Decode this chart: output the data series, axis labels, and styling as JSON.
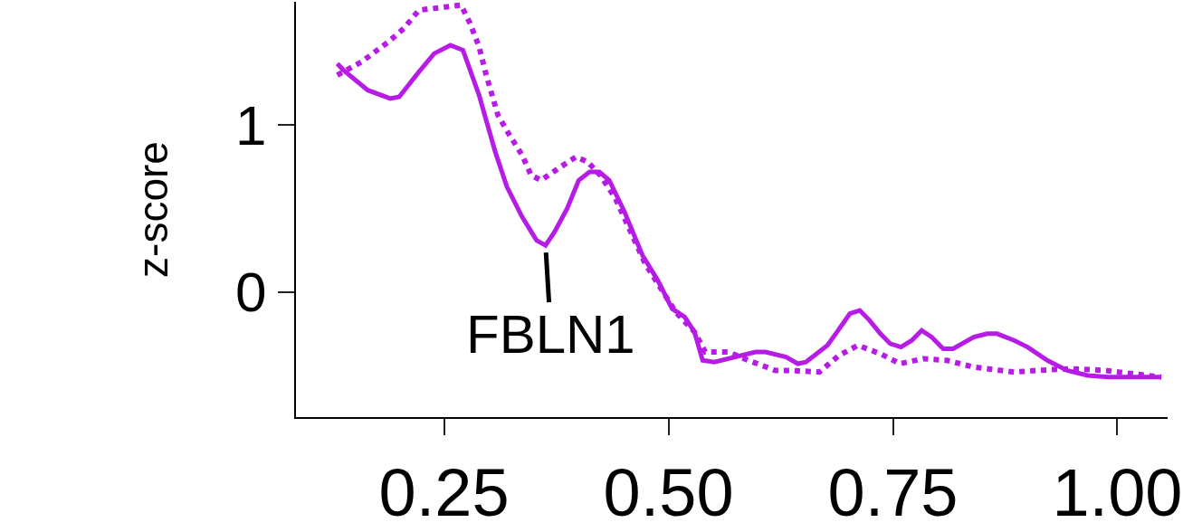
{
  "chart_data": {
    "type": "line",
    "ylabel": "z-score",
    "xlim": [
      0.085,
      1.056
    ],
    "ylim": [
      -0.75,
      1.74
    ],
    "xticks": [
      {
        "value": 0.25,
        "label": "0.25"
      },
      {
        "value": 0.5,
        "label": "0.50"
      },
      {
        "value": 0.75,
        "label": "0.75"
      },
      {
        "value": 1,
        "label": "1.00"
      }
    ],
    "yticks": [
      0,
      1
    ],
    "marker": "none",
    "annotations": [
      {
        "text": "FBLN1",
        "x": 0.363,
        "y": 0.28
      }
    ],
    "series": [
      {
        "color": "#b71be6",
        "line_style": "solid",
        "x": [
          0.131,
          0.138,
          0.165,
          0.19,
          0.2,
          0.222,
          0.239,
          0.257,
          0.271,
          0.289,
          0.307,
          0.32,
          0.337,
          0.353,
          0.363,
          0.373,
          0.387,
          0.4,
          0.412,
          0.423,
          0.434,
          0.451,
          0.471,
          0.488,
          0.504,
          0.518,
          0.529,
          0.538,
          0.551,
          0.597,
          0.608,
          0.631,
          0.644,
          0.653,
          0.677,
          0.689,
          0.702,
          0.713,
          0.724,
          0.736,
          0.747,
          0.759,
          0.771,
          0.782,
          0.793,
          0.806,
          0.817,
          0.84,
          0.855,
          0.866,
          0.885,
          0.9,
          0.922,
          0.944,
          0.967,
          0.99,
          1.049
        ],
        "values": [
          1.37,
          1.33,
          1.21,
          1.16,
          1.17,
          1.32,
          1.43,
          1.48,
          1.45,
          1.18,
          0.84,
          0.63,
          0.45,
          0.31,
          0.28,
          0.36,
          0.5,
          0.67,
          0.72,
          0.72,
          0.67,
          0.48,
          0.22,
          0.07,
          -0.1,
          -0.15,
          -0.24,
          -0.41,
          -0.42,
          -0.36,
          -0.36,
          -0.39,
          -0.43,
          -0.42,
          -0.32,
          -0.23,
          -0.13,
          -0.11,
          -0.17,
          -0.25,
          -0.31,
          -0.33,
          -0.29,
          -0.23,
          -0.27,
          -0.34,
          -0.34,
          -0.27,
          -0.25,
          -0.25,
          -0.29,
          -0.33,
          -0.41,
          -0.47,
          -0.5,
          -0.51,
          -0.51
        ]
      },
      {
        "color": "#b71be6",
        "line_style": "dotted",
        "x": [
          0.131,
          0.158,
          0.188,
          0.205,
          0.222,
          0.269,
          0.279,
          0.289,
          0.297,
          0.31,
          0.323,
          0.337,
          0.347,
          0.358,
          0.377,
          0.397,
          0.41,
          0.424,
          0.441,
          0.474,
          0.508,
          0.529,
          0.541,
          0.567,
          0.589,
          0.619,
          0.635,
          0.668,
          0.69,
          0.711,
          0.736,
          0.758,
          0.784,
          0.81,
          0.84,
          0.885,
          0.911,
          0.949,
          0.986,
          1.049
        ],
        "values": [
          1.3,
          1.38,
          1.5,
          1.58,
          1.69,
          1.72,
          1.61,
          1.47,
          1.3,
          1.06,
          0.94,
          0.82,
          0.7,
          0.67,
          0.74,
          0.81,
          0.78,
          0.7,
          0.56,
          0.17,
          -0.12,
          -0.24,
          -0.36,
          -0.36,
          -0.41,
          -0.47,
          -0.47,
          -0.48,
          -0.38,
          -0.32,
          -0.37,
          -0.43,
          -0.4,
          -0.41,
          -0.45,
          -0.48,
          -0.47,
          -0.46,
          -0.47,
          -0.51
        ]
      }
    ]
  }
}
